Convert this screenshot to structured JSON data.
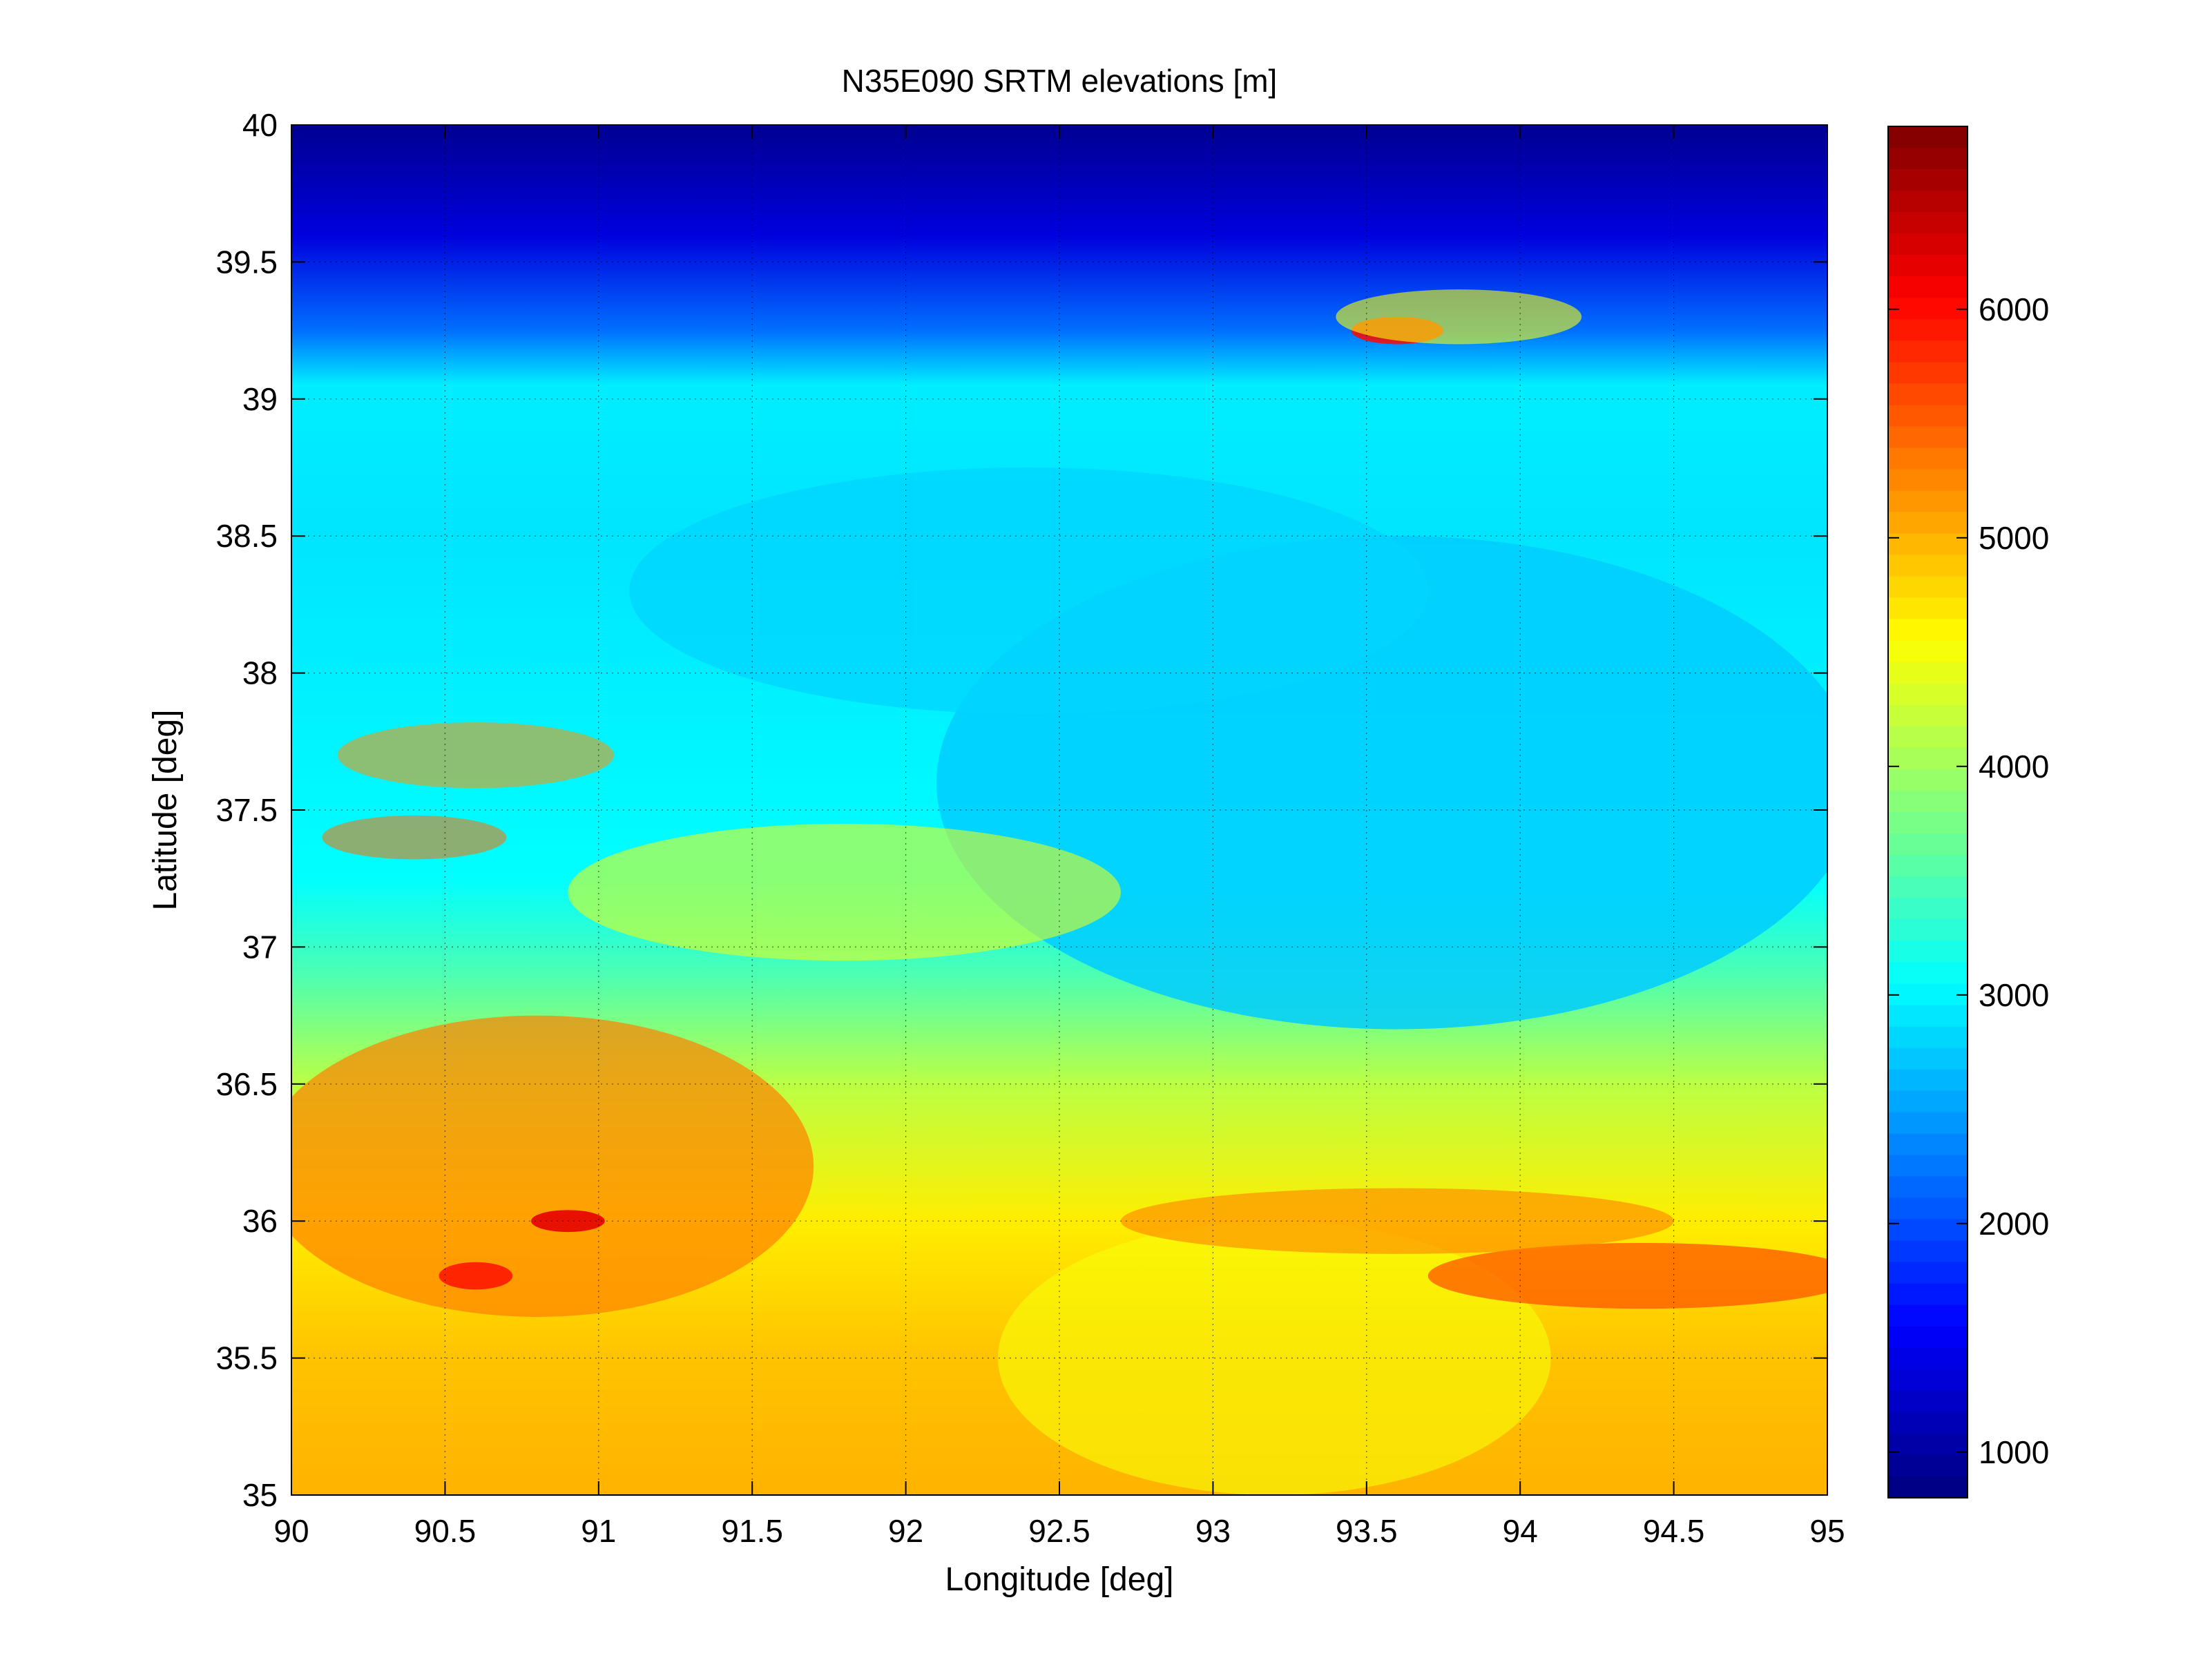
{
  "chart_data": {
    "type": "heatmap",
    "title": "N35E090 SRTM elevations [m]",
    "xlabel": "Longitude [deg]",
    "ylabel": "Latitude [deg]",
    "xlim": [
      90,
      95
    ],
    "ylim": [
      35,
      40
    ],
    "xticks": [
      "90",
      "90.5",
      "91",
      "91.5",
      "92",
      "92.5",
      "93",
      "93.5",
      "94",
      "94.5",
      "95"
    ],
    "yticks": [
      "35",
      "35.5",
      "36",
      "36.5",
      "37",
      "37.5",
      "38",
      "38.5",
      "39",
      "39.5",
      "40"
    ],
    "grid": true,
    "colormap": "jet",
    "colorbar": {
      "clim": [
        800,
        6800
      ],
      "ticks": [
        "1000",
        "2000",
        "3000",
        "4000",
        "5000",
        "6000"
      ],
      "levels": 64
    },
    "features": [
      {
        "desc": "northern low basin",
        "elevation_m": 1200
      },
      {
        "desc": "central plateau basin",
        "elevation_m": 2900
      },
      {
        "desc": "southern high plateau",
        "elevation_m": 5000
      },
      {
        "desc": "peak near 90.9E 36.0N",
        "elevation_m": 6200
      },
      {
        "desc": "peak near 93.6E 39.3N",
        "elevation_m": 6000
      }
    ]
  }
}
